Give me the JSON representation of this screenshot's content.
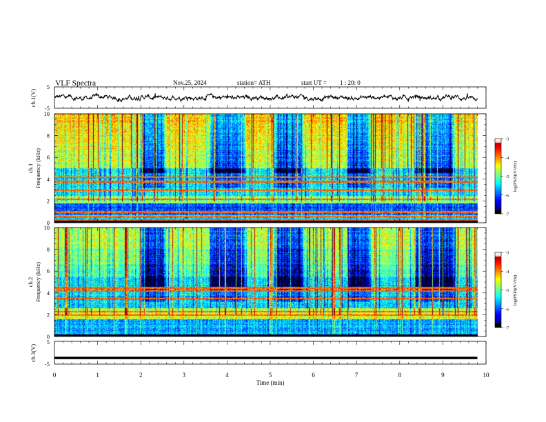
{
  "header": {
    "title": "VLF Spectra",
    "date": "Nov.25, 2024",
    "station": "station= ATH",
    "start_label": "start UT =",
    "start_time": "1 : 20: 0"
  },
  "chart_data": [
    {
      "type": "line",
      "id": "ch1_waveform",
      "ylabel": "ch.1(V)",
      "ylim": [
        -5,
        5
      ],
      "yticks": [
        "5",
        "-5"
      ],
      "xlim": [
        0,
        10
      ],
      "baseline_value": 0,
      "amplitude_range": [
        -2,
        2
      ]
    },
    {
      "type": "heatmap",
      "id": "ch1_spectrogram",
      "ylabel": [
        "ch.1",
        "Frequency (kHz)"
      ],
      "ylim": [
        0,
        10
      ],
      "yticks": [
        "0",
        "2",
        "4",
        "6",
        "8",
        "10"
      ],
      "xlim": [
        0,
        9.8
      ],
      "colorbar": {
        "label": "log(PSD)(V²/Hz)",
        "range": [
          -7,
          -3
        ],
        "ticks": [
          "-3",
          "-4",
          "-5",
          "-6",
          "-7"
        ]
      },
      "strong_lines_khz": [
        0.3,
        0.6,
        1.0,
        2.2,
        3.0,
        3.8,
        4.2
      ],
      "quiet_intervals_min": [
        [
          1.95,
          2.6
        ],
        [
          3.55,
          4.45
        ],
        [
          5.05,
          5.8
        ],
        [
          6.75,
          7.35
        ],
        [
          8.3,
          9.3
        ]
      ]
    },
    {
      "type": "heatmap",
      "id": "ch2_spectrogram",
      "ylabel": [
        "ch.2",
        "Frequency (kHz)"
      ],
      "ylim": [
        0,
        10
      ],
      "yticks": [
        "0",
        "2",
        "4",
        "6",
        "8",
        "10"
      ],
      "xlim": [
        0,
        9.8
      ],
      "colorbar": {
        "label": "log(PSD)(V²/Hz)",
        "range": [
          -7,
          -3
        ],
        "ticks": [
          "-3",
          "-4",
          "-5",
          "-6",
          "-7"
        ]
      },
      "strong_lines_khz": [
        2.0,
        2.3,
        3.5,
        4.2,
        4.5
      ],
      "quiet_intervals_min": [
        [
          1.95,
          2.6
        ],
        [
          3.55,
          4.45
        ],
        [
          5.05,
          5.8
        ],
        [
          6.75,
          7.35
        ],
        [
          8.3,
          9.3
        ]
      ]
    },
    {
      "type": "line",
      "id": "ch3_trace",
      "ylabel": "ch.3(V)",
      "ylim": [
        -5,
        5
      ],
      "yticks": [
        "5",
        "-5"
      ],
      "xlim": [
        0,
        10
      ],
      "constant_value": -2.3
    }
  ],
  "xaxis": {
    "label": "Time (min)",
    "ticks": [
      "0",
      "1",
      "2",
      "3",
      "4",
      "5",
      "6",
      "7",
      "8",
      "9",
      "10"
    ]
  }
}
